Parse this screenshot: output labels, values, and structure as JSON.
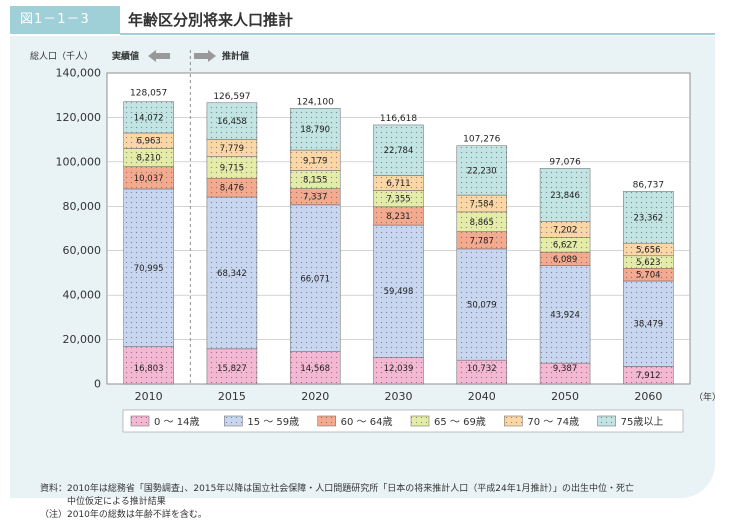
{
  "header": {
    "tag": "図1－1－3",
    "title": "年齢区分別将来人口推計"
  },
  "chart_data": {
    "type": "bar",
    "stacked": true,
    "ylabel": "総人口（千人）",
    "actual_label": "実績値",
    "projection_label": "推計値",
    "x_unit": "（年）",
    "categories": [
      "2010",
      "2015",
      "2020",
      "2030",
      "2040",
      "2050",
      "2060"
    ],
    "ylim": [
      0,
      140000
    ],
    "yticks": [
      0,
      20000,
      40000,
      60000,
      80000,
      100000,
      120000,
      140000
    ],
    "ytick_labels": [
      "0",
      "20,000",
      "40,000",
      "60,000",
      "80,000",
      "100,000",
      "120,000",
      "140,000"
    ],
    "series": [
      {
        "name": "0 ～ 14歳",
        "color": "#f4b8d2",
        "values": [
          16803,
          15827,
          14568,
          12039,
          10732,
          9387,
          7912
        ],
        "labels": [
          "16,803",
          "15,827",
          "14,568",
          "12,039",
          "10,732",
          "9,387",
          "7,912"
        ]
      },
      {
        "name": "15 ～ 59歳",
        "color": "#c8d6ef",
        "values": [
          70995,
          68342,
          66071,
          59498,
          50079,
          43924,
          38479
        ],
        "labels": [
          "70,995",
          "68,342",
          "66,071",
          "59,498",
          "50,079",
          "43,924",
          "38,479"
        ]
      },
      {
        "name": "60 ～ 64歳",
        "color": "#f4aa8e",
        "values": [
          10037,
          8476,
          7337,
          8231,
          7787,
          6089,
          5704
        ],
        "labels": [
          "10,037",
          "8,476",
          "7,337",
          "8,231",
          "7,787",
          "6,089",
          "5,704"
        ]
      },
      {
        "name": "65 ～ 69歳",
        "color": "#e4eca8",
        "values": [
          8210,
          9715,
          8155,
          7355,
          8865,
          6627,
          5623
        ],
        "labels": [
          "8,210",
          "9,715",
          "8,155",
          "7,355",
          "8,865",
          "6,627",
          "5,623"
        ]
      },
      {
        "name": "70 ～ 74歳",
        "color": "#fbd7a6",
        "values": [
          6963,
          7779,
          9179,
          6711,
          7584,
          7202,
          5656
        ],
        "labels": [
          "6,963",
          "7,779",
          "9,179",
          "6,711",
          "7,584",
          "7,202",
          "5,656"
        ]
      },
      {
        "name": "75歳以上",
        "color": "#c2e4e2",
        "values": [
          14072,
          16458,
          18790,
          22784,
          22230,
          23846,
          23362
        ],
        "labels": [
          "14,072",
          "16,458",
          "18,790",
          "22,784",
          "22,230",
          "23,846",
          "23,362"
        ]
      }
    ],
    "totals": [
      128057,
      126597,
      124100,
      116618,
      107276,
      97076,
      86737
    ],
    "total_labels": [
      "128,057",
      "126,597",
      "124,100",
      "116,618",
      "107,276",
      "97,076",
      "86,737"
    ],
    "legend_position": "bottom"
  },
  "source": {
    "line1": "資料：2010年は総務省「国勢調査」、2015年以降は国立社会保障・人口問題研究所「日本の将来推計人口（平成24年1月推計）」の出生中位・死亡",
    "line2": "　　　中位仮定による推計結果",
    "line3": "（注）2010年の総数は年齢不詳を含む。"
  }
}
